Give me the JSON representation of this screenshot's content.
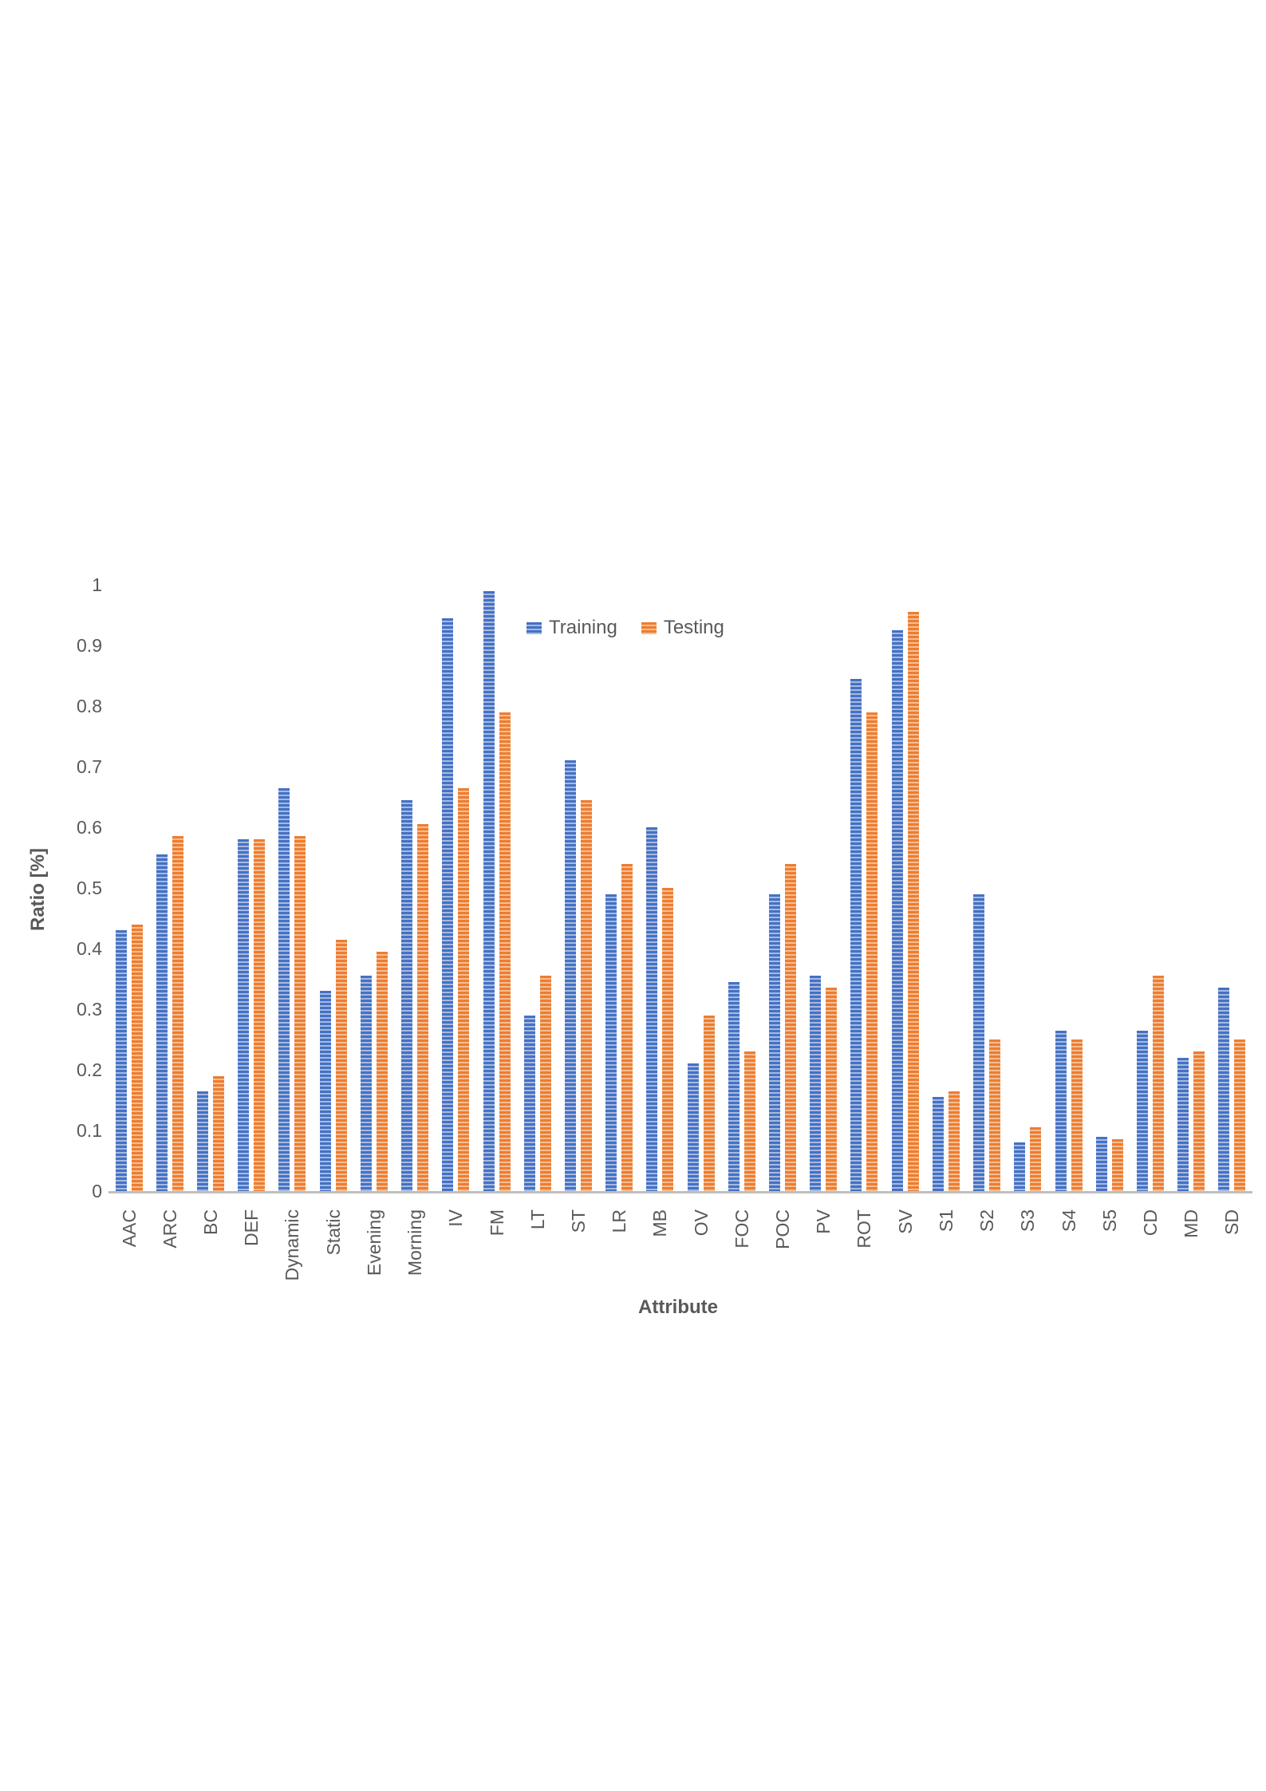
{
  "chart_data": {
    "type": "bar",
    "title": "",
    "xlabel": "Attribute",
    "ylabel": "Ratio [%]",
    "ylim": [
      0,
      1
    ],
    "y_tick_labels": [
      "0",
      "0.1",
      "0.2",
      "0.3",
      "0.4",
      "0.5",
      "0.6",
      "0.7",
      "0.8",
      "0.9",
      "1"
    ],
    "grid": false,
    "legend_position": "top-center-inside",
    "categories": [
      "AAC",
      "ARC",
      "BC",
      "DEF",
      "Dynamic",
      "Static",
      "Evening",
      "Morning",
      "IV",
      "FM",
      "LT",
      "ST",
      "LR",
      "MB",
      "OV",
      "FOC",
      "POC",
      "PV",
      "ROT",
      "SV",
      "S1",
      "S2",
      "S3",
      "S4",
      "S5",
      "CD",
      "MD",
      "SD"
    ],
    "series": [
      {
        "name": "Training",
        "color": "#4472C4",
        "stripe_color": "#A6B9E1",
        "values": [
          0.43,
          0.555,
          0.165,
          0.58,
          0.665,
          0.33,
          0.355,
          0.645,
          0.945,
          0.99,
          0.29,
          0.71,
          0.49,
          0.6,
          0.21,
          0.345,
          0.49,
          0.355,
          0.845,
          0.925,
          0.155,
          0.49,
          0.08,
          0.265,
          0.09,
          0.265,
          0.22,
          0.335
        ]
      },
      {
        "name": "Testing",
        "color": "#ED7D31",
        "stripe_color": "#F5BD92",
        "values": [
          0.44,
          0.585,
          0.19,
          0.58,
          0.585,
          0.415,
          0.395,
          0.605,
          0.665,
          0.79,
          0.355,
          0.645,
          0.54,
          0.5,
          0.29,
          0.23,
          0.54,
          0.335,
          0.79,
          0.955,
          0.165,
          0.25,
          0.105,
          0.25,
          0.085,
          0.355,
          0.23,
          0.25
        ]
      }
    ],
    "colors": {
      "axis_line": "#BFBFBF",
      "text": "#595959"
    }
  }
}
